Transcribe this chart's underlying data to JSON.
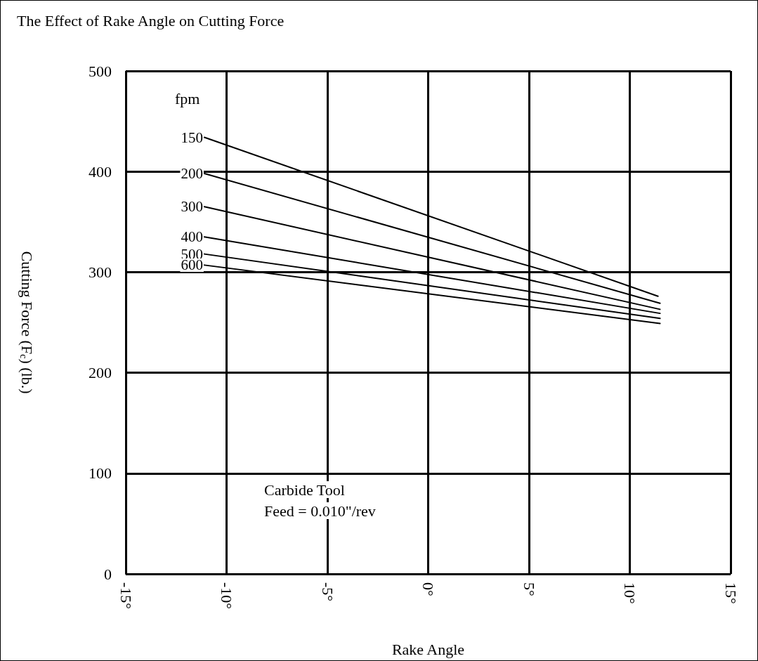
{
  "chart_data": {
    "type": "line",
    "title": "The Effect of Rake Angle on Cutting Force",
    "xlabel": "Rake Angle",
    "ylabel": "Cutting Force (F$_{c}$) (lb.)",
    "legend_title": "fpm",
    "annotations": [
      "Carbide Tool",
      "Feed = 0.010\"/rev"
    ],
    "xlim": [
      -15,
      15
    ],
    "xticks": [
      {
        "value": -15,
        "label": "-15°"
      },
      {
        "value": -10,
        "label": "-10°"
      },
      {
        "value": -5,
        "label": "-5°"
      },
      {
        "value": 0,
        "label": "0°"
      },
      {
        "value": 5,
        "label": "5°"
      },
      {
        "value": 10,
        "label": "10°"
      },
      {
        "value": 15,
        "label": "15°"
      }
    ],
    "ylim": [
      0,
      500
    ],
    "yticks": [
      0,
      100,
      200,
      300,
      400,
      500
    ],
    "grid": true,
    "legend": false,
    "series": [
      {
        "name": "150",
        "color": "#000000",
        "x": [
          -11.1,
          11.4
        ],
        "values": [
          434,
          276
        ]
      },
      {
        "name": "200",
        "color": "#000000",
        "x": [
          -11.1,
          11.5
        ],
        "values": [
          398,
          269
        ]
      },
      {
        "name": "300",
        "color": "#000000",
        "x": [
          -11.1,
          11.5
        ],
        "values": [
          365,
          263
        ]
      },
      {
        "name": "400",
        "color": "#000000",
        "x": [
          -11.1,
          11.5
        ],
        "values": [
          335,
          259
        ]
      },
      {
        "name": "500",
        "color": "#000000",
        "x": [
          -11.1,
          11.5
        ],
        "values": [
          318,
          254
        ]
      },
      {
        "name": "600",
        "color": "#000000",
        "x": [
          -11.1,
          11.5
        ],
        "values": [
          307,
          249
        ]
      }
    ]
  }
}
